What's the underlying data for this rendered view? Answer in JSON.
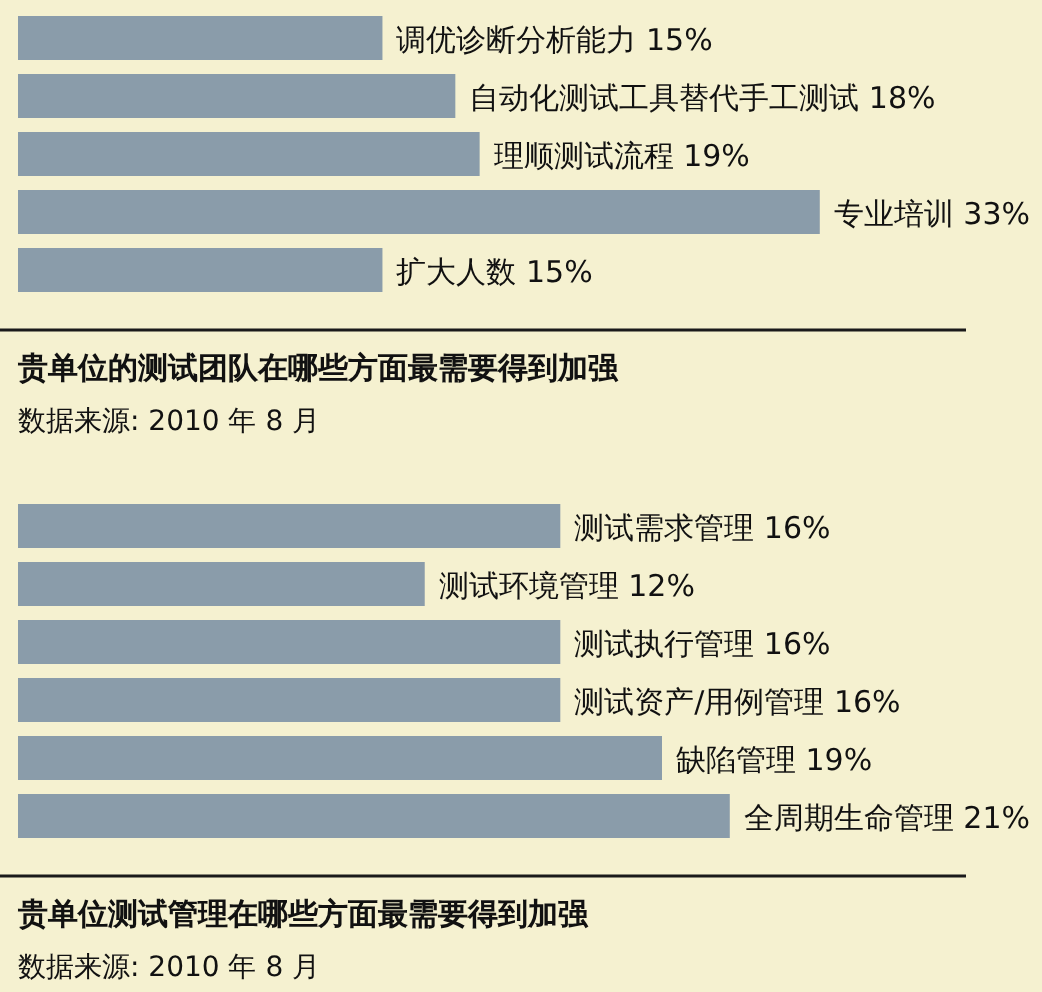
{
  "chart_data": [
    {
      "type": "bar",
      "orientation": "horizontal",
      "title": "贵单位的测试团队在哪些方面最需要得到加强",
      "annotations": [
        "数据来源: 2010 年 8 月"
      ],
      "color": "#8a9caa",
      "categories": [
        null,
        null,
        null,
        null,
        null
      ],
      "values": [
        15,
        18,
        19,
        33,
        15
      ],
      "value_labels": [
        "调优诊断分析能力 15%",
        "自动化测试工具替代手工测试 18%",
        "理顺测试流程 19%",
        "专业培训 33%",
        "扩大人数 15%"
      ]
    },
    {
      "type": "bar",
      "orientation": "horizontal",
      "title": "贵单位测试管理在哪些方面最需要得到加强",
      "annotations": [
        "数据来源: 2010 年 8 月"
      ],
      "color": "#8a9caa",
      "categories": [
        null,
        null,
        null,
        null,
        null,
        null
      ],
      "values": [
        16,
        12,
        16,
        16,
        19,
        21
      ],
      "value_labels": [
        "测试需求管理 16%",
        "测试环境管理 12%",
        "测试执行管理 16%",
        "测试资产/用例管理 16%",
        "缺陷管理 19%",
        "全周期生命管理 21%"
      ]
    }
  ]
}
